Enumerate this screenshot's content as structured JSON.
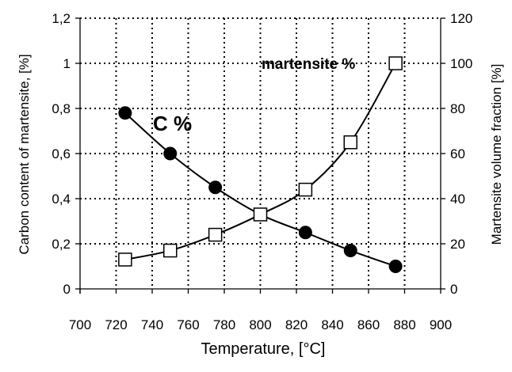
{
  "chart_data": {
    "type": "line",
    "xlabel": "Temperature, [°C]",
    "ylabel_left": "Carbon content of martensite,  [%]",
    "ylabel_right": "Martensite volume fraction [%]",
    "xlim": [
      700,
      900
    ],
    "ylim_left": [
      0,
      1.2
    ],
    "ylim_right": [
      0,
      120
    ],
    "x_ticks": [
      "700",
      "720",
      "740",
      "760",
      "780",
      "800",
      "820",
      "840",
      "860",
      "880",
      "900"
    ],
    "y_left_ticks": [
      "0",
      "0,2",
      "0,4",
      "0,6",
      "0,8",
      "1",
      "1,2"
    ],
    "y_right_ticks": [
      "0",
      "20",
      "40",
      "60",
      "80",
      "100",
      "120"
    ],
    "grid": true,
    "annotations": {
      "carbon": "C %",
      "martensite": "martensite %"
    },
    "series": [
      {
        "axis": "left",
        "marker": "filled-circle",
        "x": [
          725,
          750,
          775,
          800,
          825,
          850,
          875
        ],
        "y": [
          0.78,
          0.6,
          0.45,
          0.33,
          0.25,
          0.17,
          0.1
        ]
      },
      {
        "axis": "right",
        "marker": "open-square",
        "x": [
          725,
          750,
          775,
          800,
          825,
          850,
          875
        ],
        "y": [
          13,
          17,
          24,
          33,
          44,
          65,
          100
        ]
      }
    ]
  }
}
